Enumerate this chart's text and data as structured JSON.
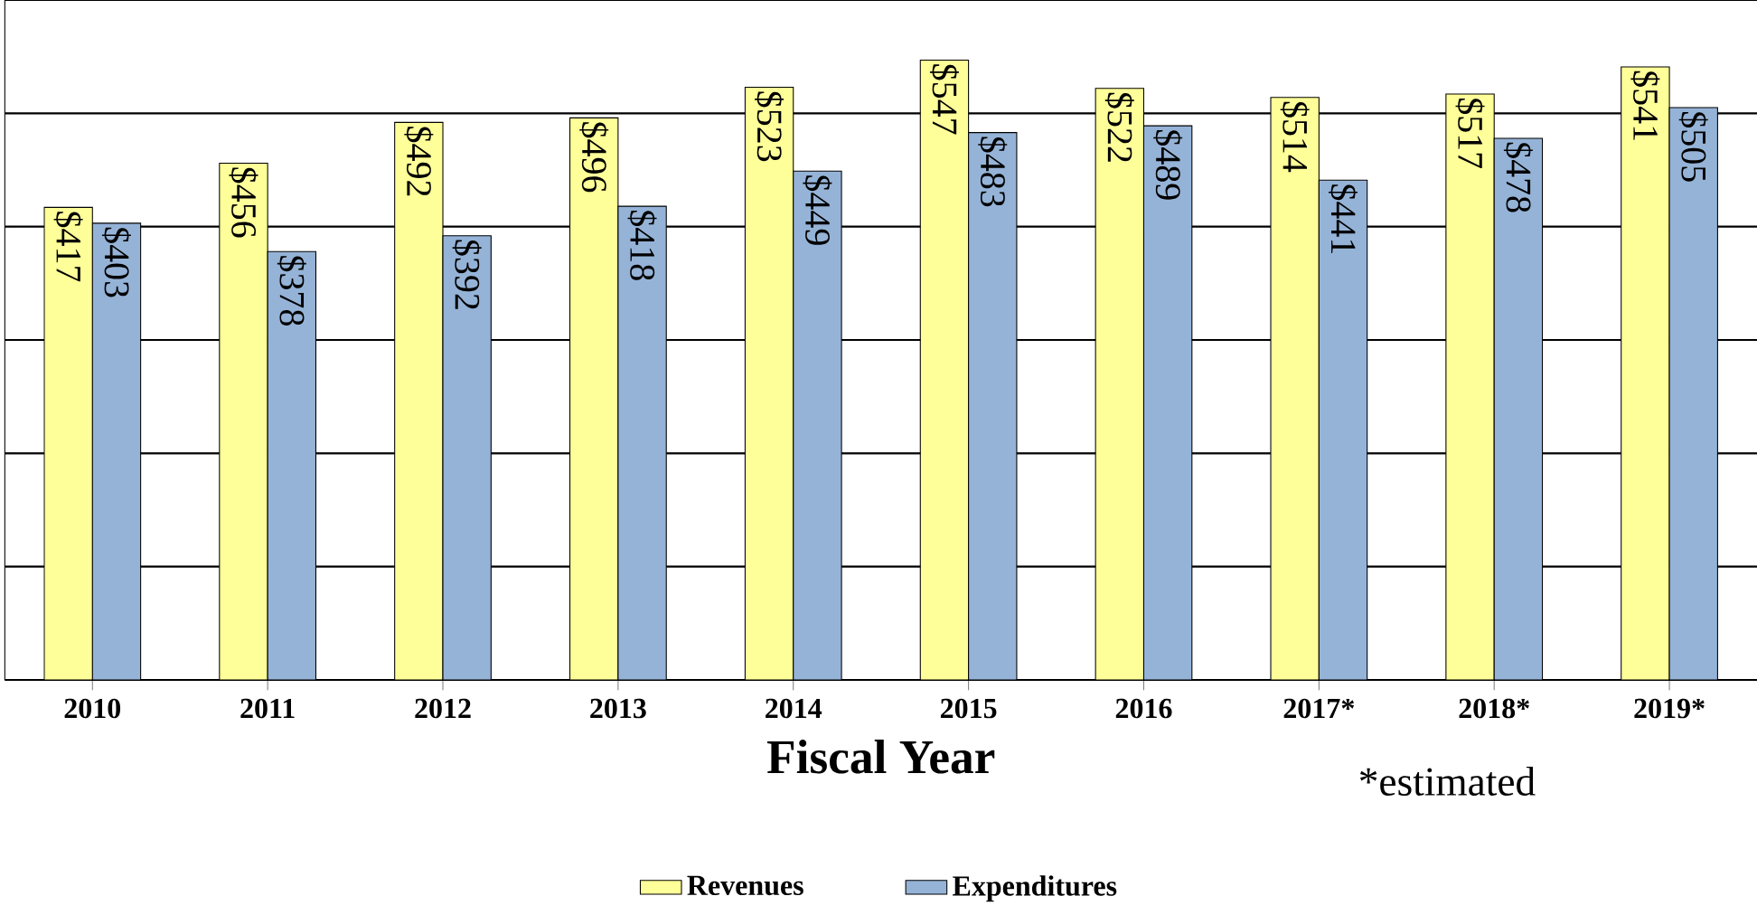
{
  "chart_data": {
    "type": "bar",
    "categories": [
      "2010",
      "2011",
      "2012",
      "2013",
      "2014",
      "2015",
      "2016",
      "2017*",
      "2018*",
      "2019*"
    ],
    "series": [
      {
        "name": "Revenues",
        "color": "#ffff99",
        "values": [
          417,
          456,
          492,
          496,
          523,
          547,
          522,
          514,
          517,
          541
        ],
        "value_labels": [
          "$417",
          "$456",
          "$492",
          "$496",
          "$523",
          "$547",
          "$522",
          "$514",
          "$517",
          "$541"
        ]
      },
      {
        "name": "Expenditures",
        "color": "#95b3d7",
        "values": [
          403,
          378,
          392,
          418,
          449,
          483,
          489,
          441,
          478,
          505
        ],
        "value_labels": [
          "$403",
          "$378",
          "$392",
          "$418",
          "$449",
          "$483",
          "$489",
          "$441",
          "$478",
          "$505"
        ]
      }
    ],
    "xlabel": "Fiscal Year",
    "annotations": [
      "*estimated"
    ],
    "ylim": [
      0,
      600
    ],
    "yticks": [
      {
        "value": 0,
        "label": null
      },
      {
        "value": 100,
        "label": null
      },
      {
        "value": 200,
        "label": null
      },
      {
        "value": 300,
        "label": null
      },
      {
        "value": 400,
        "label": null
      },
      {
        "value": 500,
        "label": null
      },
      {
        "value": 600,
        "label": null
      }
    ],
    "grid": "y",
    "tick_labels": "x",
    "legend": "bottom"
  }
}
